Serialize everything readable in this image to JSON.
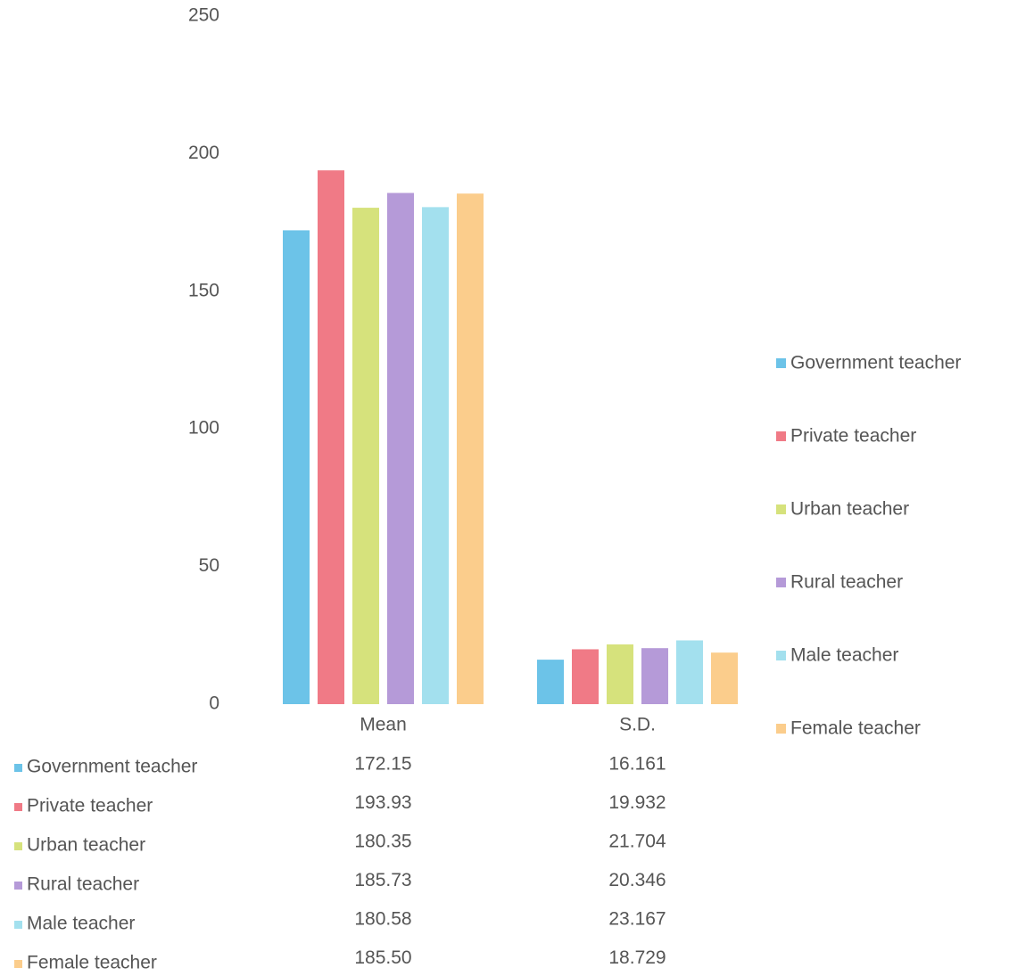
{
  "chart_data": {
    "type": "bar",
    "categories": [
      "Mean",
      "S.D."
    ],
    "series": [
      {
        "name": "Government teacher",
        "color": "#6cc3e8",
        "values": [
          172.15,
          16.161
        ]
      },
      {
        "name": "Private teacher",
        "color": "#f07a86",
        "values": [
          193.93,
          19.932
        ]
      },
      {
        "name": "Urban teacher",
        "color": "#d6e27c",
        "values": [
          180.35,
          21.704
        ]
      },
      {
        "name": "Rural teacher",
        "color": "#b59ad8",
        "values": [
          185.73,
          20.346
        ]
      },
      {
        "name": "Male teacher",
        "color": "#a3e0ee",
        "values": [
          180.58,
          23.167
        ]
      },
      {
        "name": "Female teacher",
        "color": "#fbcd8c",
        "values": [
          185.5,
          18.729
        ],
        "value_labels": [
          "185.50",
          "18.729"
        ]
      }
    ],
    "ylim": [
      0,
      250
    ],
    "yticks": [
      0,
      50,
      100,
      150,
      200,
      250
    ],
    "grid": false,
    "legend": "right",
    "data_table": true
  }
}
